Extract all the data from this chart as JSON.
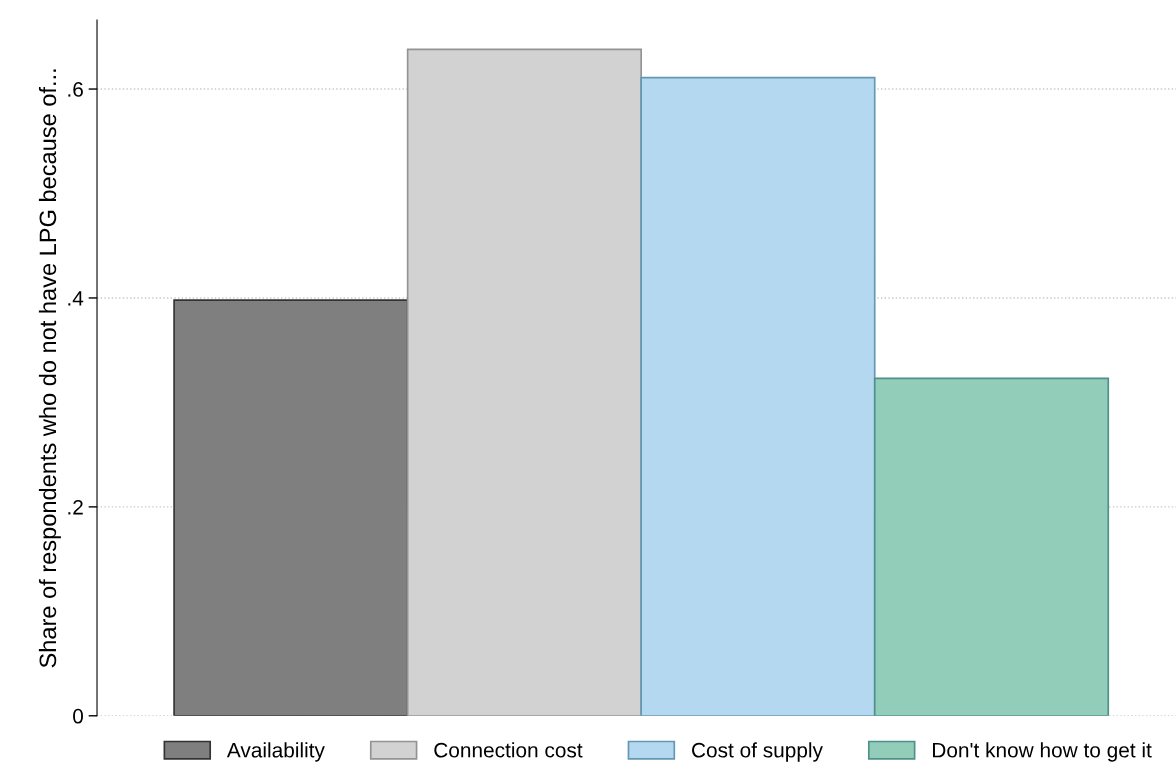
{
  "chart_data": {
    "type": "bar",
    "ylabel": "Share of respondents who do not have LPG because of...",
    "categories": [
      null
    ],
    "series": [
      {
        "name": "Availability",
        "color": "#7f7f7f",
        "values": [
          0.398
        ]
      },
      {
        "name": "Connection cost",
        "color": "#d2d2d2",
        "values": [
          0.638
        ]
      },
      {
        "name": "Cost of supply",
        "color": "#b4d8ef",
        "values": [
          0.611
        ]
      },
      {
        "name": "Don't know how to get it",
        "color": "#91cdb8",
        "values": [
          0.323
        ]
      }
    ],
    "ylim": [
      0,
      0.666
    ],
    "yticks": [
      {
        "value": 0,
        "label": "0"
      },
      {
        "value": 0.2,
        "label": ".2"
      },
      {
        "value": 0.4,
        "label": ".4"
      },
      {
        "value": 0.6,
        "label": ".6"
      }
    ],
    "grid": "y",
    "legend": "bottom"
  }
}
